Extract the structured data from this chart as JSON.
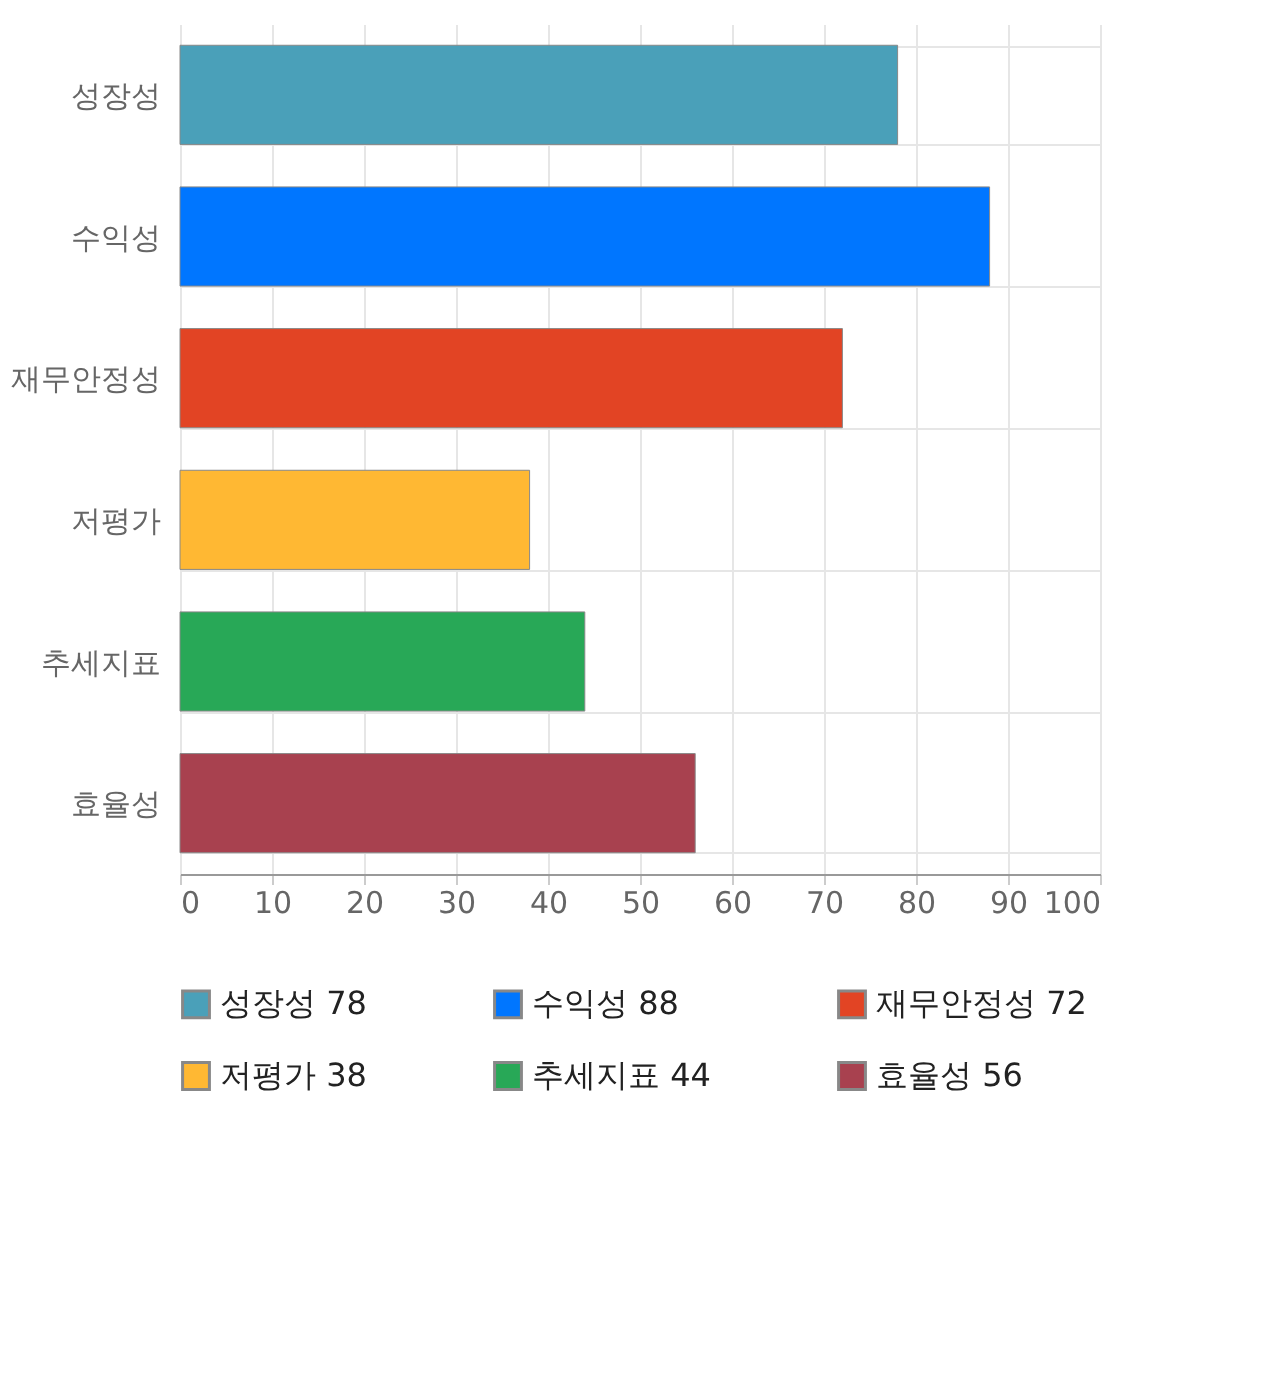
{
  "chart_data": {
    "type": "bar",
    "orientation": "horizontal",
    "categories": [
      "성장성",
      "수익성",
      "재무안정성",
      "저평가",
      "추세지표",
      "효율성"
    ],
    "series": [
      {
        "name": "성장성 78",
        "color": "#4aa0b9",
        "values": [
          78,
          null,
          null,
          null,
          null,
          null
        ]
      },
      {
        "name": "수익성 88",
        "color": "#0076ff",
        "values": [
          null,
          88,
          null,
          null,
          null,
          null
        ]
      },
      {
        "name": "재무안정성 72",
        "color": "#e24424",
        "values": [
          null,
          null,
          72,
          null,
          null,
          null
        ]
      },
      {
        "name": "저평가 38",
        "color": "#ffb833",
        "values": [
          null,
          null,
          null,
          38,
          null,
          null
        ]
      },
      {
        "name": "추세지표 44",
        "color": "#28a857",
        "values": [
          null,
          null,
          null,
          null,
          44,
          null
        ]
      },
      {
        "name": "효율성 56",
        "color": "#a8414f",
        "values": [
          null,
          null,
          null,
          null,
          null,
          56
        ]
      }
    ],
    "xlim": [
      0,
      100
    ],
    "xticks": [
      0,
      10,
      20,
      30,
      40,
      50,
      60,
      70,
      80,
      90,
      100
    ],
    "grid": true,
    "legend": "bottom"
  }
}
